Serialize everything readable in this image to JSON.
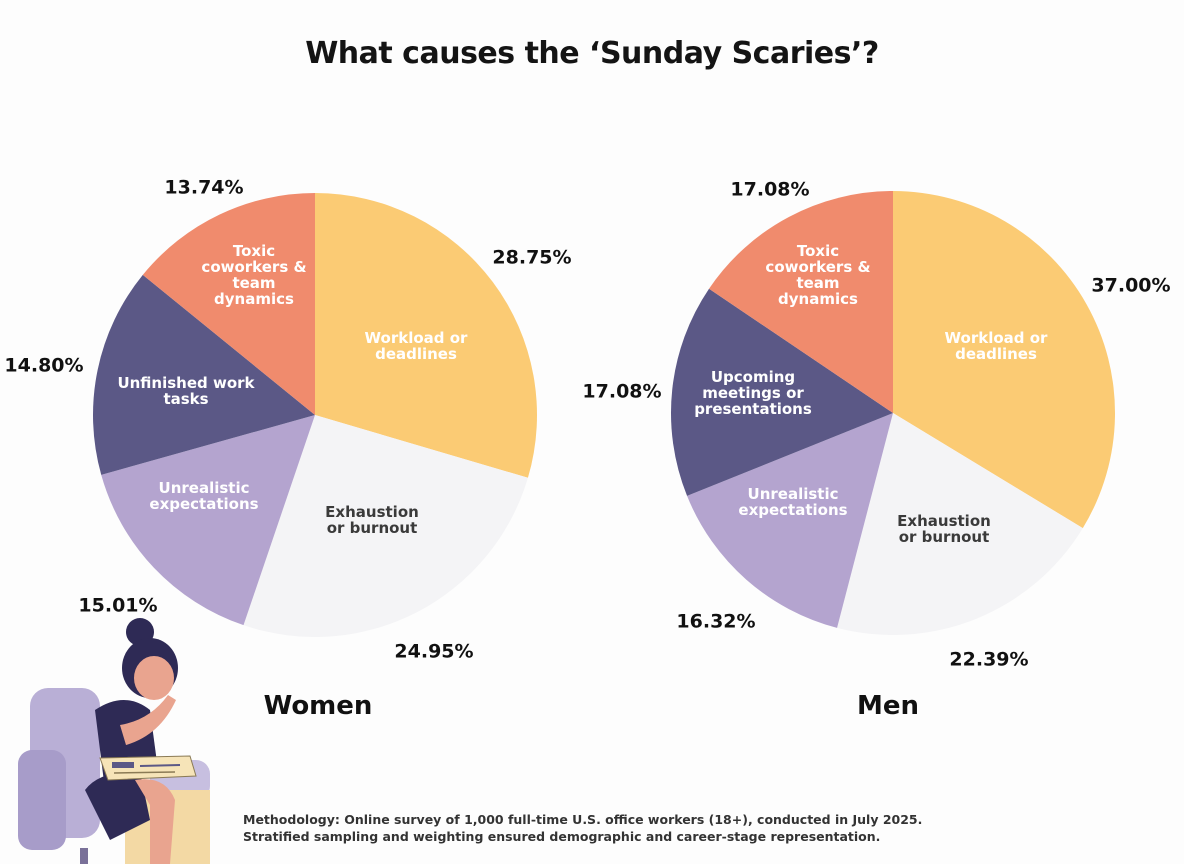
{
  "title": "What causes the ‘Sunday Scaries’?",
  "methodology": "Methodology: Online survey of 1,000 full-time U.S. office workers (18+), conducted in July 2025. Stratified sampling and weighting ensured demographic and career-stage representation.",
  "colors": {
    "workload": "#fbcb74",
    "exhaustion": "#f4f4f6",
    "unrealistic": "#b4a4cf",
    "unfinished": "#5b5886",
    "toxic": "#f08b6d"
  },
  "chart_data": [
    {
      "type": "pie",
      "title": "Women",
      "slices": [
        {
          "label": "Workload or deadlines",
          "value": 28.75,
          "display": "28.75%",
          "color": "#fbcb74",
          "text_color": "#ffffff"
        },
        {
          "label": "Exhaustion or burnout",
          "value": 24.95,
          "display": "24.95%",
          "color": "#f4f4f6",
          "text_color": "#3a3a3a"
        },
        {
          "label": "Unrealistic expectations",
          "value": 15.01,
          "display": "15.01%",
          "color": "#b4a4cf",
          "text_color": "#ffffff"
        },
        {
          "label": "Unfinished work tasks",
          "value": 14.8,
          "display": "14.80%",
          "color": "#5b5886",
          "text_color": "#ffffff"
        },
        {
          "label": "Toxic coworkers & team dynamics",
          "value": 13.74,
          "display": "13.74%",
          "color": "#f08b6d",
          "text_color": "#ffffff"
        }
      ]
    },
    {
      "type": "pie",
      "title": "Men",
      "slices": [
        {
          "label": "Workload or deadlines",
          "value": 37.0,
          "display": "37.00%",
          "color": "#fbcb74",
          "text_color": "#ffffff"
        },
        {
          "label": "Exhaustion or burnout",
          "value": 22.39,
          "display": "22.39%",
          "color": "#f4f4f6",
          "text_color": "#3a3a3a"
        },
        {
          "label": "Unrealistic expectations",
          "value": 16.32,
          "display": "16.32%",
          "color": "#b4a4cf",
          "text_color": "#ffffff"
        },
        {
          "label": "Upcoming meetings or presentations",
          "value": 17.08,
          "display": "17.08%",
          "color": "#5b5886",
          "text_color": "#ffffff"
        },
        {
          "label": "Toxic coworkers & team dynamics",
          "value": 17.08,
          "display": "17.08%",
          "color": "#f08b6d",
          "text_color": "#ffffff"
        }
      ]
    }
  ]
}
